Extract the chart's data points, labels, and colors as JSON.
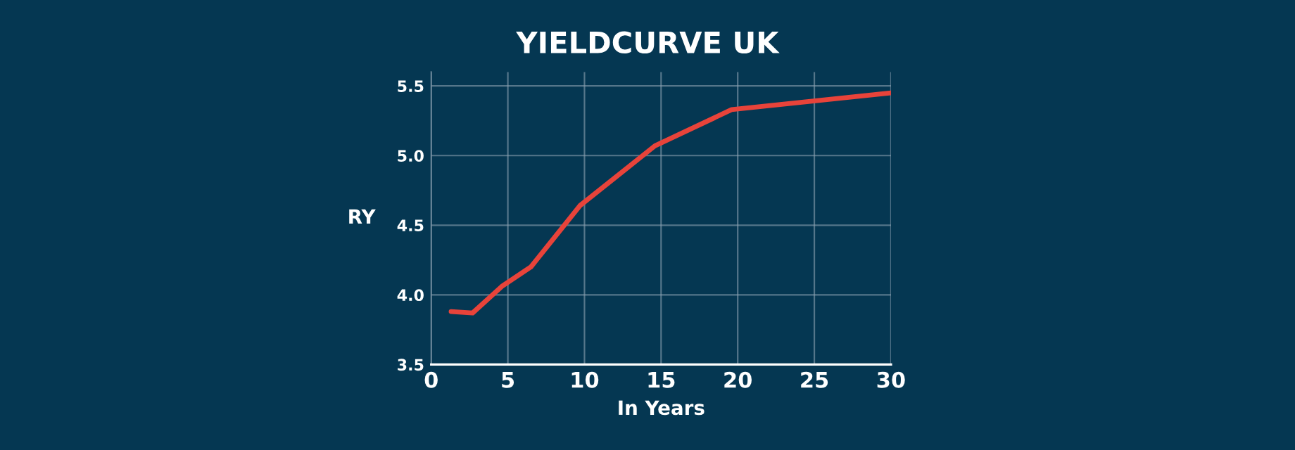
{
  "chart_data": {
    "type": "line",
    "title": "YIELDCURVE UK",
    "xlabel": "In Years",
    "ylabel": "RY",
    "x": [
      1.3,
      2.7,
      4.6,
      6.5,
      9.7,
      14.6,
      19.6,
      30
    ],
    "series": [
      {
        "color": "#e8433a",
        "values": [
          3.88,
          3.87,
          4.06,
          4.2,
          4.64,
          5.07,
          5.33,
          5.45
        ]
      }
    ],
    "xlim": [
      0,
      30
    ],
    "xticks": [
      0,
      5,
      10,
      15,
      20,
      25,
      30
    ],
    "ylim": [
      3.5,
      5.6
    ],
    "yticks": [
      3.5,
      {
        "value": 4,
        "label": "4.0"
      },
      4.5,
      {
        "value": 5,
        "label": "5.0"
      },
      5.5
    ],
    "grid": true,
    "marker": "none",
    "line_style": "solid"
  }
}
